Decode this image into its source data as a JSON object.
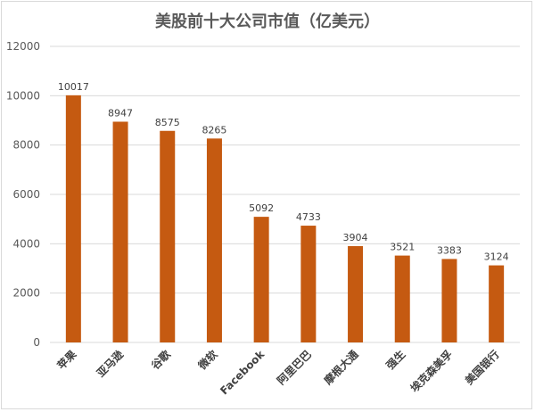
{
  "chart_data": {
    "type": "bar",
    "title": "美股前十大公司市值（亿美元）",
    "xlabel": "",
    "ylabel": "",
    "categories": [
      "苹果",
      "亚马逊",
      "谷歌",
      "微软",
      "Facebook",
      "阿里巴巴",
      "摩根大通",
      "强生",
      "埃克森美孚",
      "美国银行"
    ],
    "values": [
      10017,
      8947,
      8575,
      8265,
      5092,
      4733,
      3904,
      3521,
      3383,
      3124
    ],
    "ylim": [
      0,
      12000
    ],
    "yticks": [
      0,
      2000,
      4000,
      6000,
      8000,
      10000,
      12000
    ],
    "grid": true,
    "legend": "none",
    "bar_color": "#C55A11"
  }
}
